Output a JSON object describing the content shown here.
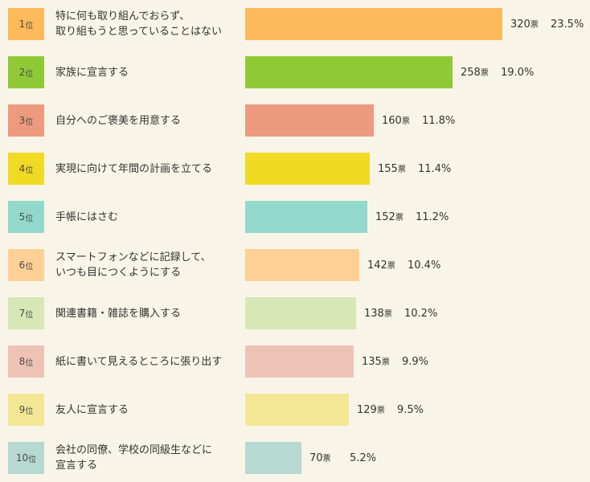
{
  "chart_data": {
    "type": "bar",
    "orientation": "horizontal",
    "vote_unit": "票",
    "rank_unit": "位",
    "items": [
      {
        "rank": "1",
        "label": "特に何も取り組んでおらず、\n取り組もうと思っていることはない",
        "votes": 320,
        "percent": "23.5%",
        "color": "#fdb95a",
        "rank_color": "#fdb95a"
      },
      {
        "rank": "2",
        "label": "家族に宣言する",
        "votes": 258,
        "percent": "19.0%",
        "color": "#90c936",
        "rank_color": "#90c936"
      },
      {
        "rank": "3",
        "label": "自分へのご褒美を用意する",
        "votes": 160,
        "percent": "11.8%",
        "color": "#ee9a7e",
        "rank_color": "#ee9a7e"
      },
      {
        "rank": "4",
        "label": "実現に向けて年間の計画を立てる",
        "votes": 155,
        "percent": "11.4%",
        "color": "#f1da24",
        "rank_color": "#f1da24"
      },
      {
        "rank": "5",
        "label": "手帳にはさむ",
        "votes": 152,
        "percent": "11.2%",
        "color": "#93d9cb",
        "rank_color": "#93d9cb"
      },
      {
        "rank": "6",
        "label": "スマートフォンなどに記録して、\nいつも目につくようにする",
        "votes": 142,
        "percent": "10.4%",
        "color": "#fed095",
        "rank_color": "#fed095"
      },
      {
        "rank": "7",
        "label": "関連書籍・雑誌を購入する",
        "votes": 138,
        "percent": "10.2%",
        "color": "#d7e7b6",
        "rank_color": "#d7e7b6"
      },
      {
        "rank": "8",
        "label": "紙に書いて見えるところに張り出す",
        "votes": 135,
        "percent": "9.9%",
        "color": "#eec3b6",
        "rank_color": "#eec3b6"
      },
      {
        "rank": "9",
        "label": "友人に宣言する",
        "votes": 129,
        "percent": "9.5%",
        "color": "#f3e795",
        "rank_color": "#f3e795"
      },
      {
        "rank": "10",
        "label": "会社の同僚、学校の同級生などに\n宣言する",
        "votes": 70,
        "percent": "5.2%",
        "color": "#b6d9d1",
        "rank_color": "#b6d9d1"
      }
    ],
    "xlim": [
      0,
      320
    ]
  }
}
